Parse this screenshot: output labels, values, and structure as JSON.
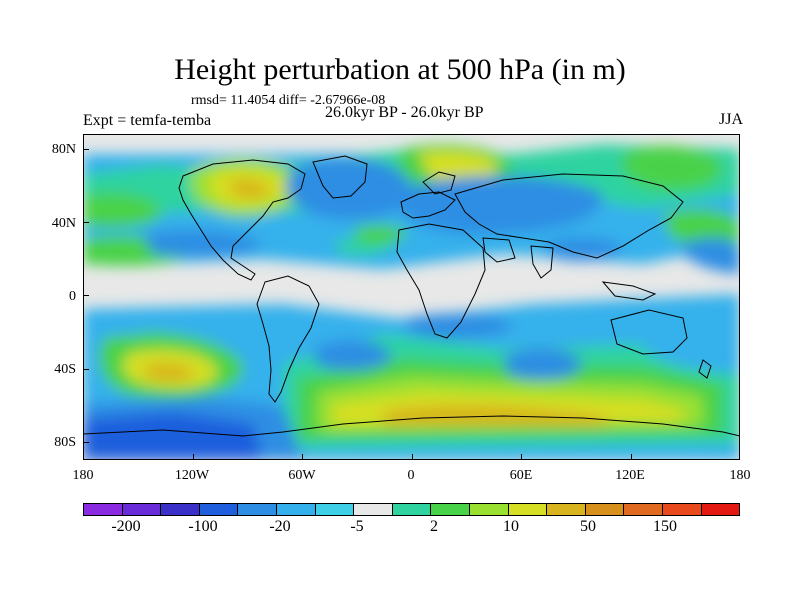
{
  "title": "Height perturbation at 500 hPa (in m)",
  "stats": "rmsd= 11.4054 diff= -2.67966e-08",
  "expt": "Expt = temfa-temba",
  "period": "26.0kyr BP - 26.0kyr BP",
  "season": "JJA",
  "axes": {
    "y_ticks": [
      "80N",
      "40N",
      "0",
      "40S",
      "80S"
    ],
    "x_ticks": [
      "180",
      "120W",
      "60W",
      "0",
      "60E",
      "120E",
      "180"
    ]
  },
  "colorbar": {
    "colors": [
      "#8a2be2",
      "#6a2bd8",
      "#3b30c8",
      "#1f5fdd",
      "#2e8ee3",
      "#34b1ec",
      "#3fcfe7",
      "#e8e8e8",
      "#2ed3a0",
      "#48d24a",
      "#9ae030",
      "#d6df24",
      "#d8b51e",
      "#d8901c",
      "#e06a20",
      "#e84a1e",
      "#e41a12"
    ],
    "labels": [
      "-200",
      "-100",
      "-20",
      "-5",
      "2",
      "10",
      "50",
      "150"
    ]
  },
  "map_colors": {
    "neutral": "#e8e8e8",
    "light_blue": "#34b1ec",
    "mid_blue": "#2e8ee3",
    "dark_blue": "#1f5fdd",
    "cyan": "#3fcfe7",
    "teal": "#2ed3a0",
    "green": "#48d24a",
    "yellow_green": "#9ae030",
    "yellow": "#d6df24",
    "orange": "#d8b51e",
    "coast": "#000000"
  }
}
